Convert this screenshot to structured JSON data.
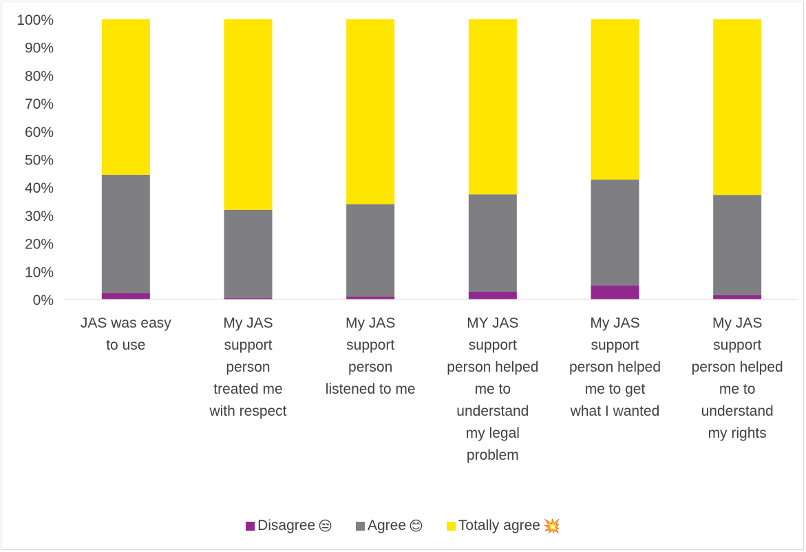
{
  "chart_data": {
    "type": "bar",
    "stacked": true,
    "normalized": true,
    "categories": [
      [
        "JAS was easy",
        "to use"
      ],
      [
        "My JAS",
        "support",
        "person",
        "treated me",
        "with respect"
      ],
      [
        "My JAS",
        "support",
        "person",
        "listened to me"
      ],
      [
        "MY JAS",
        "support",
        "person helped",
        "me to",
        "understand",
        "my legal",
        "problem"
      ],
      [
        "My JAS",
        "support",
        "person helped",
        "me to get",
        "what I wanted"
      ],
      [
        "My JAS",
        "support",
        "person helped",
        "me to",
        "understand",
        "my rights"
      ]
    ],
    "series": [
      {
        "name": "Disagree",
        "icon": "😒",
        "color": "#91278f",
        "values": [
          2.2,
          0.5,
          1.0,
          2.7,
          5.0,
          1.5
        ]
      },
      {
        "name": "Agree",
        "icon": "😊",
        "color": "#7f7e82",
        "values": [
          42.3,
          31.5,
          33.0,
          34.8,
          37.8,
          35.8
        ]
      },
      {
        "name": "Totally agree",
        "icon": "💥",
        "color": "#ffe600",
        "values": [
          55.5,
          68.0,
          66.0,
          62.5,
          57.2,
          62.7
        ]
      }
    ],
    "y_ticks": [
      "0%",
      "10%",
      "20%",
      "30%",
      "40%",
      "50%",
      "60%",
      "70%",
      "80%",
      "90%",
      "100%"
    ],
    "ylim": [
      0,
      100
    ],
    "grid": false,
    "legend_position": "bottom"
  }
}
